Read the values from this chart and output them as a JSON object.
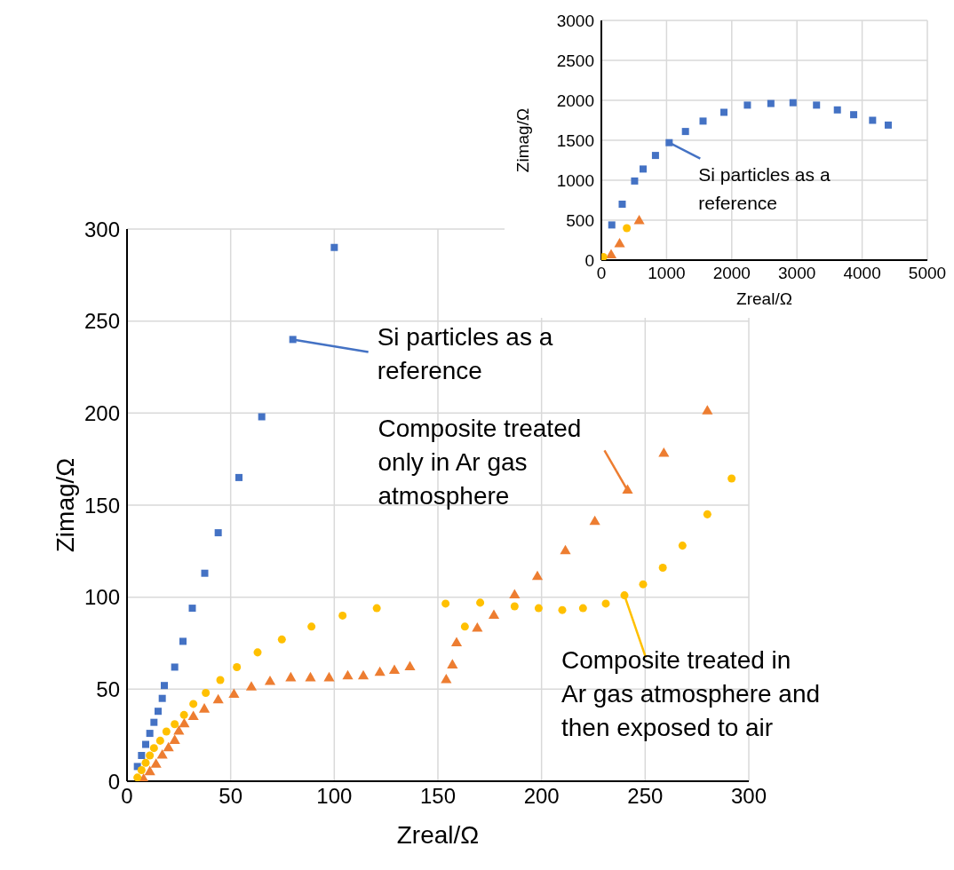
{
  "chart_data": [
    {
      "type": "scatter",
      "xlabel": "Zreal/Ω",
      "ylabel": "Zimag/Ω",
      "xlim": [
        0,
        300
      ],
      "ylim": [
        0,
        300
      ],
      "xticks": [
        0,
        50,
        100,
        150,
        200,
        250,
        300
      ],
      "yticks": [
        0,
        50,
        100,
        150,
        200,
        250,
        300
      ],
      "grid": true,
      "series": [
        {
          "color": "#4472c4",
          "marker": "square",
          "x": [
            5,
            7,
            9,
            11,
            13,
            15,
            17,
            18,
            23,
            27,
            31.5,
            37.5,
            44,
            54,
            65,
            80,
            100
          ],
          "values": [
            8,
            14,
            20,
            26,
            32,
            38,
            45,
            52,
            62,
            76,
            94,
            113,
            135,
            165,
            198,
            240,
            290
          ]
        },
        {
          "color": "#ed7d31",
          "marker": "triangle",
          "x": [
            8,
            11,
            14,
            17,
            20,
            23,
            25,
            27.6,
            32,
            37.3,
            44,
            51.6,
            60,
            69,
            79,
            88.5,
            97.5,
            106.5,
            114,
            122,
            129,
            136.5,
            154,
            157,
            159,
            169,
            177,
            187,
            198,
            211.5,
            225.7,
            241.5,
            259,
            280
          ],
          "values": [
            1,
            5,
            9,
            14,
            18,
            22,
            27,
            31,
            35,
            39,
            44,
            47,
            51,
            54,
            56,
            56,
            56,
            57,
            57,
            59,
            60,
            62,
            55,
            63,
            75,
            83,
            90,
            101,
            111,
            125,
            141,
            158,
            178,
            201
          ]
        },
        {
          "color": "#ffc000",
          "marker": "circle",
          "x": [
            5,
            7,
            9,
            11,
            13,
            16,
            19,
            23,
            27.5,
            32,
            38,
            45,
            53,
            63,
            74.7,
            89,
            104,
            120.5,
            153.7,
            163,
            170.4,
            187,
            198.6,
            210,
            220,
            231,
            240,
            249,
            258.5,
            268,
            280,
            291.7
          ],
          "values": [
            2,
            6,
            10,
            14,
            18,
            22,
            27,
            31,
            36,
            42,
            48,
            55,
            62,
            70,
            77,
            84,
            90,
            94,
            96.5,
            84,
            97,
            95,
            94,
            93,
            94,
            96.5,
            101,
            107,
            116,
            128,
            145,
            164.5
          ]
        }
      ],
      "annotations": [
        {
          "text": "Si particles as a reference",
          "x": 80,
          "y": 240
        },
        {
          "text": "Composite treated only in Ar gas atmosphere",
          "x": 241.5,
          "y": 158
        },
        {
          "text": "Composite treated in Ar gas atmosphere and then exposed to air",
          "x": 240,
          "y": 101
        }
      ]
    },
    {
      "type": "scatter",
      "xlabel": "Zreal/Ω",
      "ylabel": "Zimag/Ω",
      "xlim": [
        0,
        5000
      ],
      "ylim": [
        0,
        3000
      ],
      "xticks": [
        0,
        1000,
        2000,
        3000,
        4000,
        5000
      ],
      "yticks": [
        0,
        500,
        1000,
        1500,
        2000,
        2500,
        3000
      ],
      "grid": true,
      "series": [
        {
          "color": "#4472c4",
          "marker": "square",
          "x": [
            160,
            320,
            510,
            640,
            830,
            1040,
            1290,
            1560,
            1880,
            2240,
            2600,
            2940,
            3300,
            3620,
            3870,
            4160,
            4400
          ],
          "values": [
            440,
            700,
            990,
            1140,
            1310,
            1470,
            1610,
            1740,
            1850,
            1940,
            1960,
            1970,
            1940,
            1880,
            1820,
            1750,
            1690
          ]
        },
        {
          "color": "#ed7d31",
          "marker": "triangle",
          "x": [
            150,
            280,
            580
          ],
          "values": [
            60,
            200,
            490
          ]
        },
        {
          "color": "#ffc000",
          "marker": "circle",
          "x": [
            30,
            390
          ],
          "values": [
            40,
            400
          ]
        }
      ],
      "annotations": [
        {
          "text": "Si particles as a reference",
          "x": 1040,
          "y": 1470
        }
      ]
    }
  ]
}
